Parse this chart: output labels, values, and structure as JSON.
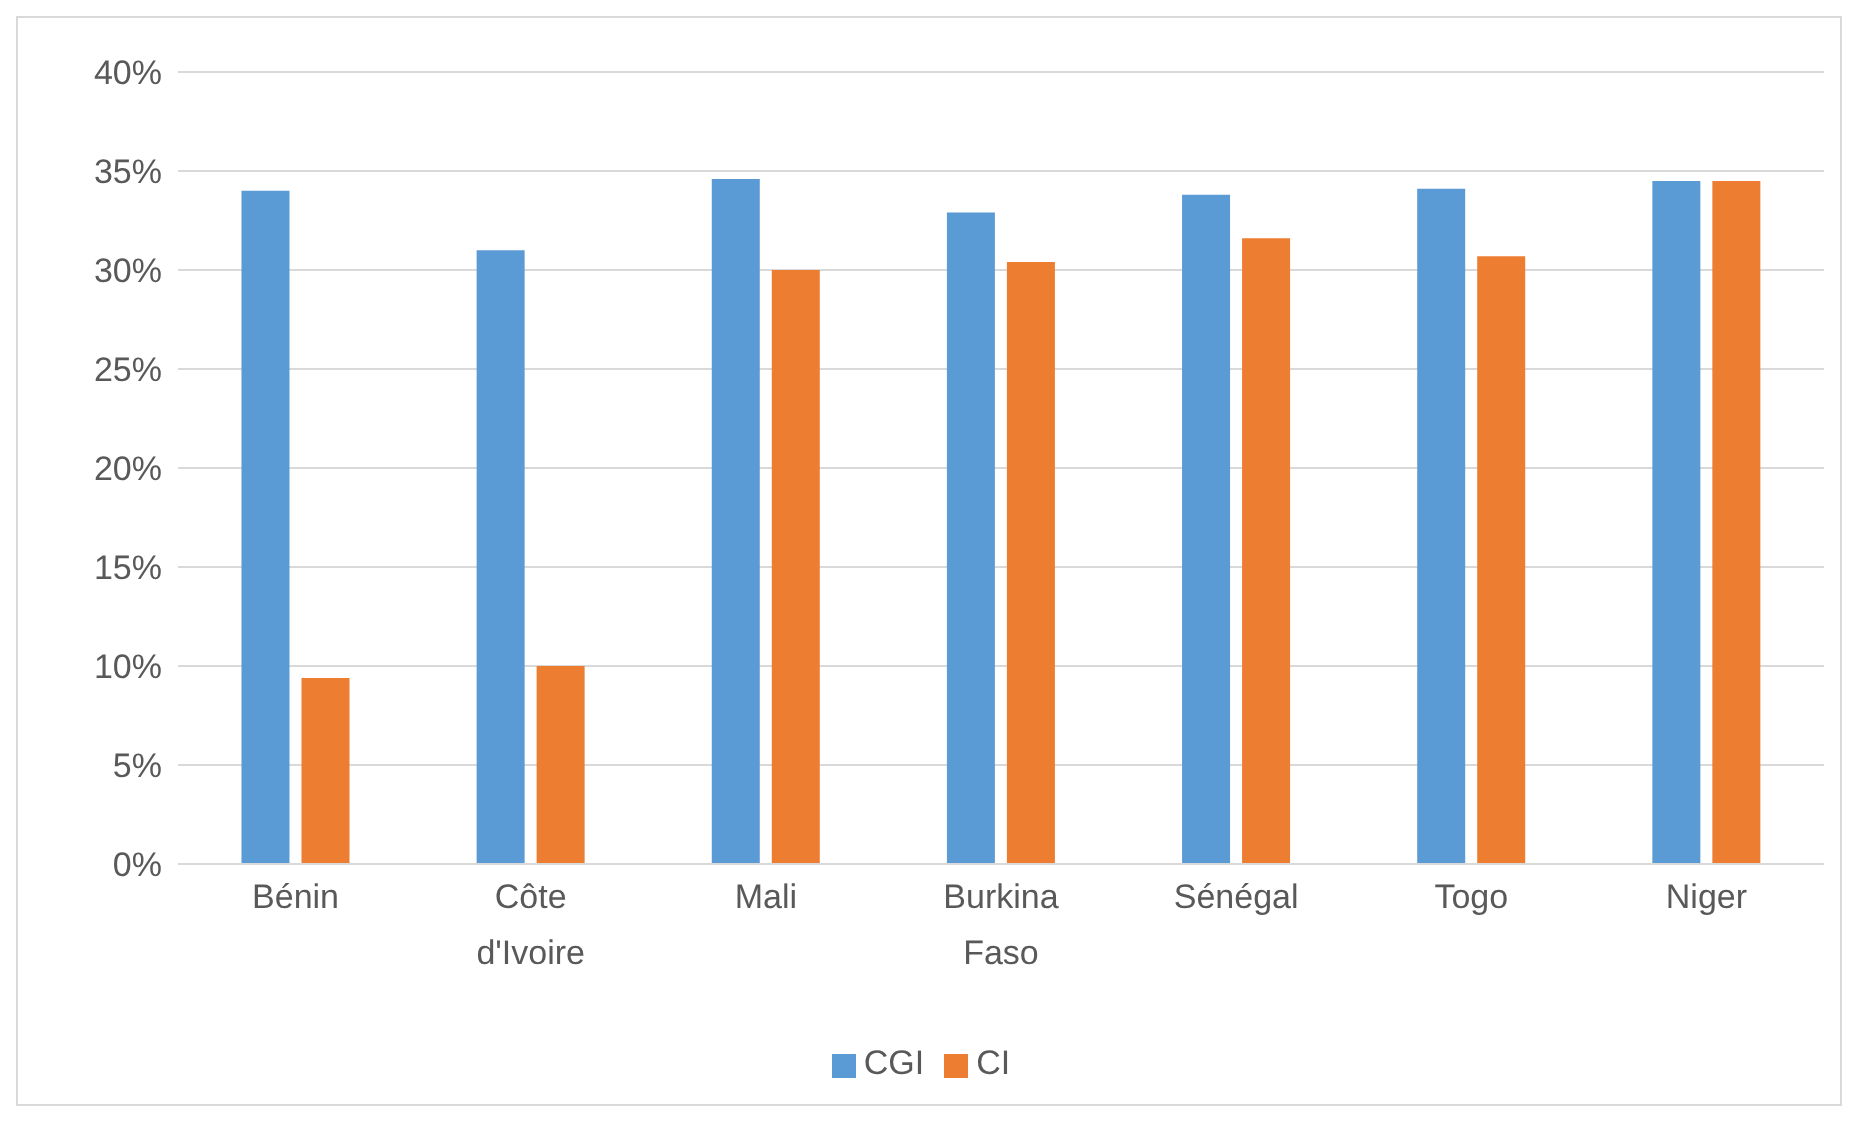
{
  "chart_data": {
    "type": "bar",
    "categories": [
      "Bénin",
      "Côte d'Ivoire",
      "Mali",
      "Burkina Faso",
      "Sénégal",
      "Togo",
      "Niger"
    ],
    "series": [
      {
        "name": "CGI",
        "color": "#5b9bd5",
        "values": [
          34,
          31,
          34.6,
          32.9,
          33.8,
          34.1,
          34.5
        ]
      },
      {
        "name": "CI",
        "color": "#ed7d31",
        "values": [
          9.4,
          10,
          30,
          30.4,
          31.6,
          30.7,
          34.5
        ]
      }
    ],
    "ylim": [
      0,
      40
    ],
    "yticks": [
      {
        "value": 0,
        "label": "0%"
      },
      {
        "value": 5,
        "label": "5%"
      },
      {
        "value": 10,
        "label": "10%"
      },
      {
        "value": 15,
        "label": "15%"
      },
      {
        "value": 20,
        "label": "20%"
      },
      {
        "value": 25,
        "label": "25%"
      },
      {
        "value": 30,
        "label": "30%"
      },
      {
        "value": 35,
        "label": "35%"
      },
      {
        "value": 40,
        "label": "40%"
      }
    ],
    "grid": "y",
    "legend": "bottom"
  }
}
